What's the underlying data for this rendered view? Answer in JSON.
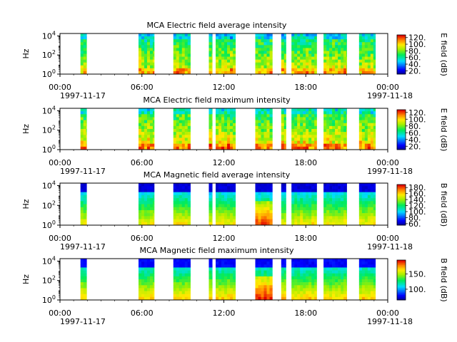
{
  "chart_data": [
    {
      "type": "heatmap",
      "title": "MCA  Electric field average intensity",
      "ylabel": "Hz",
      "y_scale": "log",
      "yticks": [
        "10^0",
        "10^2",
        "10^4"
      ],
      "xticks": [
        "00:00",
        "06:00",
        "12:00",
        "18:00",
        "00:00"
      ],
      "date_start": "1997-11-17",
      "date_end": "1997-11-18",
      "colorbar_label": "E field (dB)",
      "colorbar_ticks": [
        "20.",
        "40.",
        "60.",
        "80.",
        "100.",
        "120."
      ],
      "colorbar_range": [
        10,
        128
      ],
      "data_intervals_hours": [
        [
          1.5,
          1.95
        ],
        [
          5.75,
          6.9
        ],
        [
          8.3,
          9.55
        ],
        [
          10.9,
          11.15
        ],
        [
          11.4,
          12.85
        ],
        [
          14.3,
          15.55
        ],
        [
          16.2,
          16.55
        ],
        [
          16.95,
          18.8
        ],
        [
          19.3,
          21.0
        ],
        [
          21.9,
          23.1
        ]
      ]
    },
    {
      "type": "heatmap",
      "title": "MCA  Electric field maximum intensity",
      "ylabel": "Hz",
      "y_scale": "log",
      "yticks": [
        "10^0",
        "10^2",
        "10^4"
      ],
      "xticks": [
        "00:00",
        "06:00",
        "12:00",
        "18:00",
        "00:00"
      ],
      "date_start": "1997-11-17",
      "date_end": "1997-11-18",
      "colorbar_label": "E field (dB)",
      "colorbar_ticks": [
        "20.",
        "40.",
        "60.",
        "80.",
        "100.",
        "120."
      ],
      "colorbar_range": [
        10,
        128
      ],
      "data_intervals_hours": [
        [
          1.5,
          1.95
        ],
        [
          5.75,
          6.9
        ],
        [
          8.3,
          9.55
        ],
        [
          10.9,
          11.15
        ],
        [
          11.4,
          12.85
        ],
        [
          14.3,
          15.55
        ],
        [
          16.2,
          16.55
        ],
        [
          16.95,
          18.8
        ],
        [
          19.3,
          21.0
        ],
        [
          21.9,
          23.1
        ]
      ]
    },
    {
      "type": "heatmap",
      "title": "MCA  Magnetic field average intensity",
      "ylabel": "Hz",
      "y_scale": "log",
      "yticks": [
        "10^0",
        "10^2",
        "10^4"
      ],
      "xticks": [
        "00:00",
        "06:00",
        "12:00",
        "18:00",
        "00:00"
      ],
      "date_start": "1997-11-17",
      "date_end": "1997-11-18",
      "colorbar_label": "B field (dB)",
      "colorbar_ticks": [
        "60.",
        "80.",
        "100.",
        "120.",
        "140.",
        "160.",
        "180."
      ],
      "colorbar_range": [
        55,
        190
      ],
      "data_intervals_hours": [
        [
          1.5,
          1.95
        ],
        [
          5.75,
          6.9
        ],
        [
          8.3,
          9.55
        ],
        [
          10.9,
          11.15
        ],
        [
          11.4,
          12.85
        ],
        [
          14.3,
          15.55
        ],
        [
          16.2,
          16.55
        ],
        [
          16.95,
          18.8
        ],
        [
          19.3,
          21.0
        ],
        [
          21.9,
          23.1
        ]
      ]
    },
    {
      "type": "heatmap",
      "title": "MCA  Magnetic field maximum intensity",
      "ylabel": "Hz",
      "y_scale": "log",
      "yticks": [
        "10^0",
        "10^2",
        "10^4"
      ],
      "xticks": [
        "00:00",
        "06:00",
        "12:00",
        "18:00",
        "00:00"
      ],
      "date_start": "1997-11-17",
      "date_end": "1997-11-18",
      "colorbar_label": "B field (dB)",
      "colorbar_ticks": [
        "100.",
        "150."
      ],
      "colorbar_range": [
        65,
        195
      ],
      "data_intervals_hours": [
        [
          1.5,
          1.95
        ],
        [
          5.75,
          6.9
        ],
        [
          8.3,
          9.55
        ],
        [
          10.9,
          11.15
        ],
        [
          11.4,
          12.85
        ],
        [
          14.3,
          15.55
        ],
        [
          16.2,
          16.55
        ],
        [
          16.95,
          18.8
        ],
        [
          19.3,
          21.0
        ],
        [
          21.9,
          23.1
        ]
      ]
    }
  ]
}
